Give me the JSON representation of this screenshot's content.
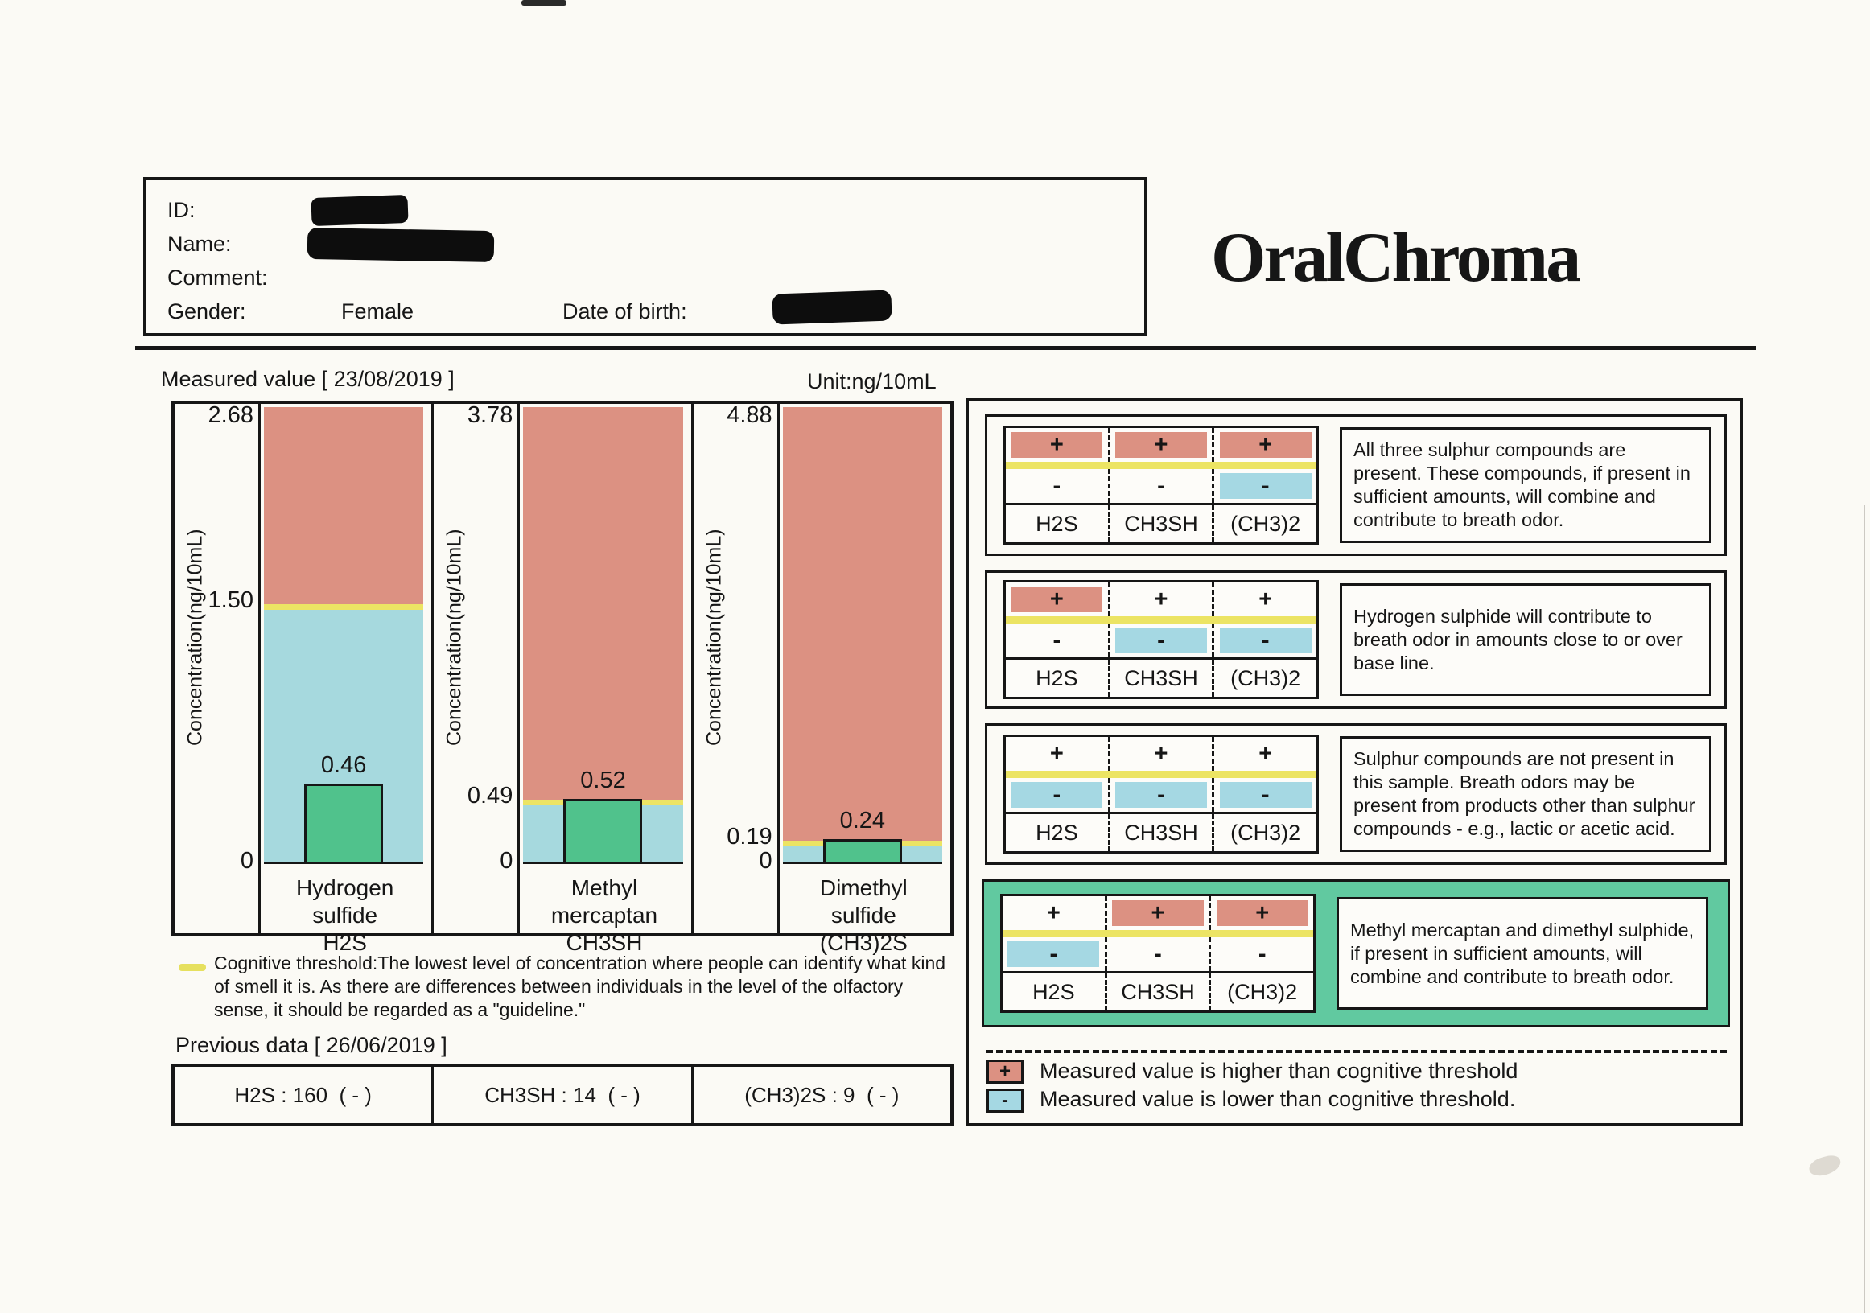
{
  "logo": "OralChroma",
  "patient": {
    "id_label": "ID:",
    "name_label": "Name:",
    "comment_label": "Comment:",
    "gender_label": "Gender:",
    "gender_value": "Female",
    "dob_label": "Date of birth:"
  },
  "measured_title": "Measured value  [ 23/08/2019 ]",
  "unit": "Unit:ng/10mL",
  "charts": [
    {
      "y_axis_label": "Concentration(ng/10mL)",
      "max": "2.68",
      "threshold": "1.50",
      "zero": "0",
      "value": "0.46",
      "name": "Hydrogen\nsulfide\nH2S"
    },
    {
      "y_axis_label": "Concentration(ng/10mL)",
      "max": "3.78",
      "threshold": "0.49",
      "zero": "0",
      "value": "0.52",
      "name": "Methyl\nmercaptan\nCH3SH"
    },
    {
      "y_axis_label": "Concentration(ng/10mL)",
      "max": "4.88",
      "threshold": "0.19",
      "zero": "0",
      "value": "0.24",
      "name": "Dimethyl\nsulfide\n(CH3)2S"
    }
  ],
  "chart_data": [
    {
      "type": "bar",
      "title": "Hydrogen sulfide H2S",
      "ylabel": "Concentration(ng/10mL)",
      "unit": "ng/10mL",
      "date": "23/08/2019",
      "ylim": [
        0,
        2.68
      ],
      "threshold": 1.5,
      "value": 0.46
    },
    {
      "type": "bar",
      "title": "Methyl mercaptan CH3SH",
      "ylabel": "Concentration(ng/10mL)",
      "unit": "ng/10mL",
      "date": "23/08/2019",
      "ylim": [
        0,
        3.78
      ],
      "threshold": 0.49,
      "value": 0.52
    },
    {
      "type": "bar",
      "title": "Dimethyl sulfide (CH3)2S",
      "ylabel": "Concentration(ng/10mL)",
      "unit": "ng/10mL",
      "date": "23/08/2019",
      "ylim": [
        0,
        4.88
      ],
      "threshold": 0.19,
      "value": 0.24
    }
  ],
  "threshold_note": "Cognitive threshold:The lowest level of concentration where people can identify what kind\nof smell it is. As there are differences between individuals in the level of the olfactory\nsense, it should be regarded as a \"guideline.\"",
  "previous": {
    "title": "Previous data [ 26/06/2019 ]",
    "items": [
      "H2S : 160  ( - )",
      "CH3SH : 14  ( - )",
      "(CH3)2S : 9  ( - )"
    ]
  },
  "signs": {
    "plus": "+",
    "minus": "-"
  },
  "interpretations": [
    {
      "columns": [
        "H2S",
        "CH3SH",
        "(CH3)2"
      ],
      "plus": [
        "pink",
        "pink",
        "pink"
      ],
      "minus": [
        "none",
        "none",
        "blue"
      ],
      "highlighted": false,
      "text": "All three sulphur compounds are present. These compounds, if present in sufficient amounts, will combine and contribute to breath odor."
    },
    {
      "columns": [
        "H2S",
        "CH3SH",
        "(CH3)2"
      ],
      "plus": [
        "pink",
        "none",
        "none"
      ],
      "minus": [
        "none",
        "blue",
        "blue"
      ],
      "highlighted": false,
      "text": "Hydrogen sulphide will contribute to breath odor in amounts close to or over base line."
    },
    {
      "columns": [
        "H2S",
        "CH3SH",
        "(CH3)2"
      ],
      "plus": [
        "none",
        "none",
        "none"
      ],
      "minus": [
        "blue",
        "blue",
        "blue"
      ],
      "highlighted": false,
      "text": "Sulphur compounds are not present in this sample. Breath odors may be present from products other than sulphur compounds - e.g., lactic or acetic acid."
    },
    {
      "columns": [
        "H2S",
        "CH3SH",
        "(CH3)2"
      ],
      "plus": [
        "none",
        "pink",
        "pink"
      ],
      "minus": [
        "blue",
        "none",
        "none"
      ],
      "highlighted": true,
      "text": "Methyl mercaptan and dimethyl sulphide, if present in sufficient amounts, will combine and contribute to breath odor."
    }
  ],
  "legend": {
    "higher": "Measured value is higher than cognitive threshold",
    "lower": "Measured value is lower than cognitive threshold."
  },
  "colors": {
    "above_threshold": "#dc9182",
    "below_threshold": "#a6d9de",
    "measured_bar": "#50c28c",
    "threshold_line": "#ece464",
    "highlight_box": "#61c9a0"
  }
}
